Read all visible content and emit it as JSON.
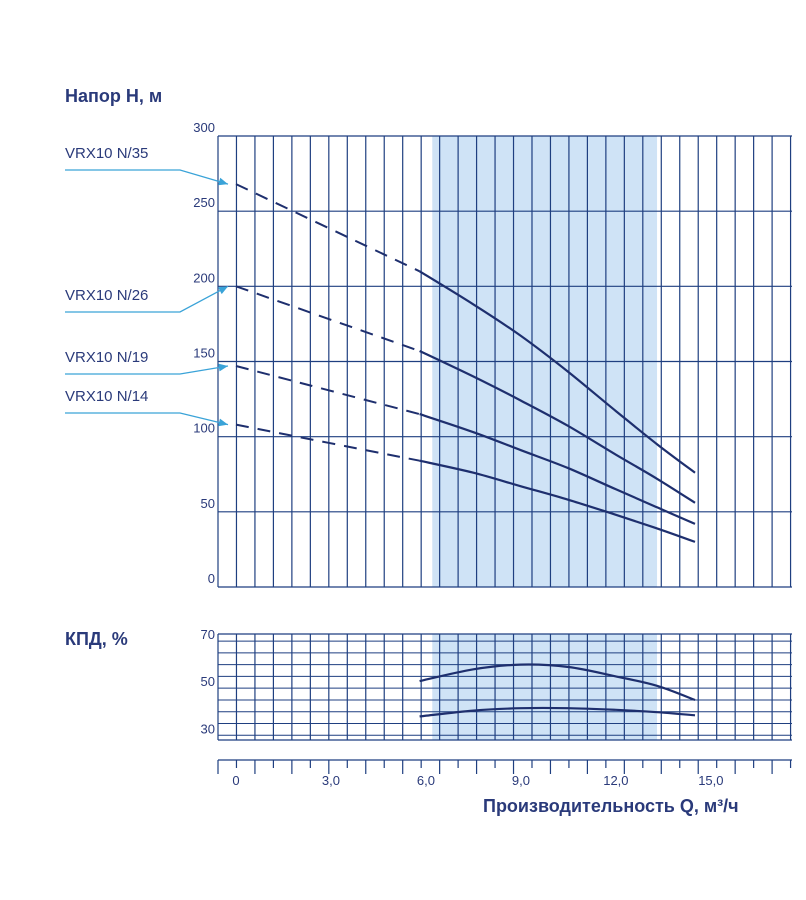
{
  "chart_data": [
    {
      "type": "line",
      "ylabel": "Напор H, м",
      "ylim": [
        0,
        300
      ],
      "yticks": [
        "0",
        "50",
        "100",
        "150",
        "200",
        "250",
        "300"
      ],
      "xlim": [
        0,
        17.5
      ],
      "highlight_x_range": [
        6.2,
        13.3
      ],
      "grid": true,
      "series": [
        {
          "name": "VRX10 N/35",
          "dashed": {
            "x": [
              0,
              5.8
            ],
            "y": [
              268,
              210
            ]
          },
          "solid": {
            "x": [
              5.8,
              7.5,
              9.0,
              10.5,
              12.0,
              13.3,
              14.5
            ],
            "y": [
              210,
              188,
              167,
              143,
              117,
              95,
              76
            ]
          }
        },
        {
          "name": "VRX10 N/26",
          "dashed": {
            "x": [
              0,
              5.8
            ],
            "y": [
              200,
              157
            ]
          },
          "solid": {
            "x": [
              5.8,
              7.5,
              9.0,
              10.5,
              12.0,
              13.3,
              14.5
            ],
            "y": [
              157,
              140,
              124,
              107,
              88,
              72,
              56
            ]
          }
        },
        {
          "name": "VRX10 N/19",
          "dashed": {
            "x": [
              0,
              5.8
            ],
            "y": [
              147,
              115
            ]
          },
          "solid": {
            "x": [
              5.8,
              7.5,
              9.0,
              10.5,
              12.0,
              13.3,
              14.5
            ],
            "y": [
              115,
              103,
              91,
              79,
              65,
              53,
              42
            ]
          }
        },
        {
          "name": "VRX10 N/14",
          "dashed": {
            "x": [
              0,
              5.8
            ],
            "y": [
              108,
              84
            ]
          },
          "solid": {
            "x": [
              5.8,
              7.5,
              9.0,
              10.5,
              12.0,
              13.3,
              14.5
            ],
            "y": [
              84,
              76,
              67,
              58,
              48,
              39,
              30
            ]
          }
        }
      ]
    },
    {
      "type": "line",
      "ylabel": "КПД, %",
      "ylim": [
        28,
        73
      ],
      "yticks": [
        "30",
        "50",
        "70"
      ],
      "xlabel": "Производительность Q, м³/ч",
      "xticks": [
        "0",
        "3,0",
        "6,0",
        "9,0",
        "12,0",
        "15,0"
      ],
      "xlim": [
        0,
        17.5
      ],
      "highlight_x_range": [
        6.2,
        13.3
      ],
      "grid": true,
      "series": [
        {
          "x": [
            5.8,
            7.5,
            9.0,
            10.5,
            12.0,
            13.3,
            14.5
          ],
          "y": [
            53,
            58,
            60,
            59,
            55,
            51,
            45
          ]
        },
        {
          "x": [
            5.8,
            7.5,
            9.0,
            10.5,
            12.0,
            13.3,
            14.5
          ],
          "y": [
            38,
            40.5,
            41.5,
            41.5,
            40.8,
            39.8,
            38.5
          ]
        }
      ]
    }
  ]
}
